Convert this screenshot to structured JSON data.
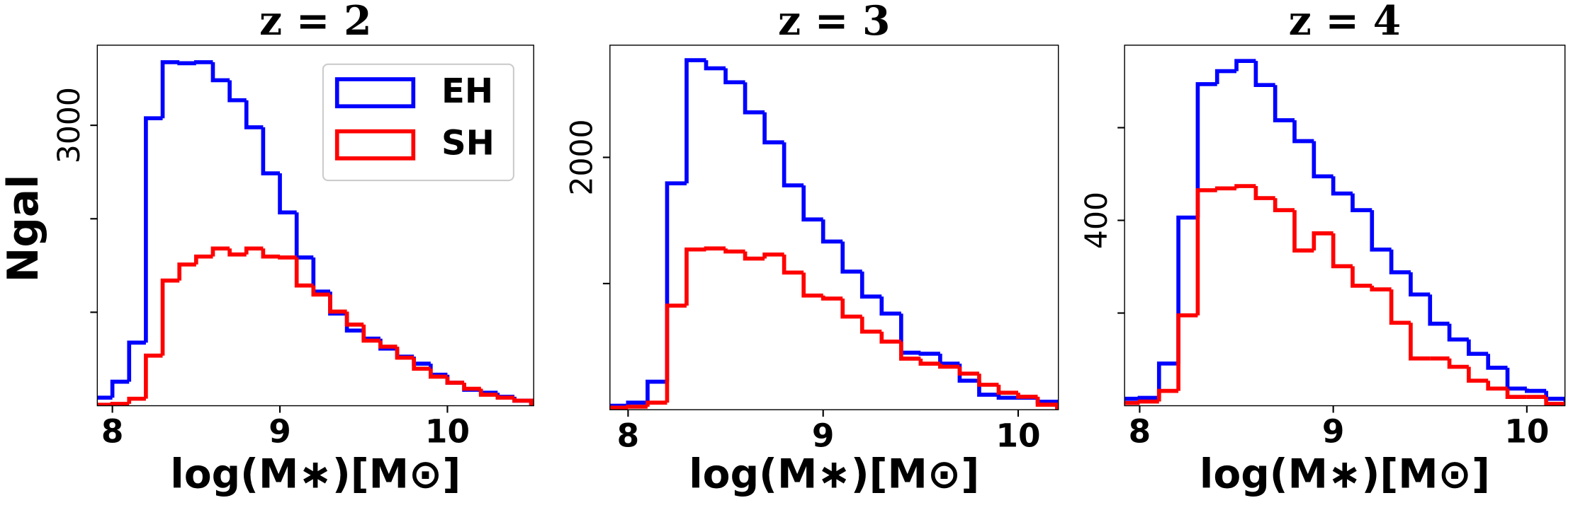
{
  "chart_data": [
    {
      "type": "histogram",
      "title": "z = 2",
      "xlabel": "log(M∗)[M⊙]",
      "ylabel": "Ngal",
      "legend": "upper right",
      "bins": [
        7.9,
        8.0,
        8.1,
        8.2,
        8.3,
        8.4,
        8.5,
        8.6,
        8.7,
        8.8,
        8.9,
        9.0,
        9.1,
        9.2,
        9.3,
        9.4,
        9.5,
        9.6,
        9.7,
        9.8,
        9.9,
        10.0,
        10.1,
        10.2,
        10.3,
        10.4,
        10.5
      ],
      "series": [
        {
          "name": "EH",
          "color": "#0000ff",
          "values": [
            86,
            257,
            675,
            3075,
            3675,
            3664,
            3675,
            3482,
            3268,
            2979,
            2486,
            2068,
            1586,
            1221,
            986,
            804,
            718,
            611,
            525,
            450,
            332,
            246,
            171,
            139,
            96,
            54
          ]
        },
        {
          "name": "SH",
          "color": "#ff0000",
          "values": [
            10,
            20,
            75,
            536,
            1339,
            1511,
            1596,
            1682,
            1618,
            1682,
            1596,
            1586,
            1286,
            1189,
            1007,
            868,
            696,
            632,
            514,
            396,
            311,
            246,
            182,
            118,
            86,
            54
          ]
        }
      ],
      "xlim": [
        7.91,
        10.515
      ],
      "xticks": [
        8,
        9,
        10
      ],
      "ylim": [
        0,
        3857
      ],
      "yticks": [
        3000
      ],
      "yminor": [
        1000,
        2000
      ]
    },
    {
      "type": "histogram",
      "title": "z = 3",
      "xlabel": "log(M∗)[M⊙]",
      "bins": [
        7.9,
        8.0,
        8.1,
        8.2,
        8.3,
        8.4,
        8.5,
        8.6,
        8.7,
        8.8,
        8.9,
        9.0,
        9.1,
        9.2,
        9.3,
        9.4,
        9.5,
        9.6,
        9.7,
        9.8,
        9.9,
        10.0,
        10.1,
        10.2
      ],
      "series": [
        {
          "name": "EH",
          "color": "#0000ff",
          "values": [
            32,
            56,
            222,
            1794,
            2770,
            2706,
            2595,
            2357,
            2119,
            1778,
            1508,
            1333,
            1095,
            897,
            762,
            452,
            444,
            365,
            230,
            119,
            95,
            95,
            63
          ]
        },
        {
          "name": "SH",
          "color": "#ff0000",
          "values": [
            16,
            24,
            56,
            825,
            1270,
            1278,
            1254,
            1198,
            1230,
            1087,
            905,
            881,
            738,
            619,
            540,
            405,
            365,
            341,
            286,
            198,
            135,
            103,
            40
          ]
        }
      ],
      "xlim": [
        7.907,
        10.206
      ],
      "xticks": [
        8,
        9,
        10
      ],
      "ylim": [
        0,
        2889
      ],
      "yticks": [
        2000
      ],
      "yminor": [
        1000
      ]
    },
    {
      "type": "histogram",
      "title": "z = 4",
      "xlabel": "log(M∗)[M⊙]",
      "bins": [
        7.9,
        8.0,
        8.1,
        8.2,
        8.3,
        8.4,
        8.5,
        8.6,
        8.7,
        8.8,
        8.9,
        9.0,
        9.1,
        9.2,
        9.3,
        9.4,
        9.5,
        9.6,
        9.7,
        9.8,
        9.9,
        10.0,
        10.1,
        10.2
      ],
      "series": [
        {
          "name": "EH",
          "color": "#0000ff",
          "values": [
            15,
            17,
            91,
            406,
            694,
            722,
            744,
            692,
            616,
            571,
            495,
            458,
            422,
            337,
            288,
            240,
            177,
            143,
            112,
            82,
            37,
            32,
            15
          ]
        },
        {
          "name": "SH",
          "color": "#ff0000",
          "values": [
            6,
            9,
            32,
            195,
            465,
            469,
            474,
            448,
            422,
            335,
            372,
            301,
            259,
            251,
            179,
            102,
            102,
            84,
            54,
            37,
            19,
            19,
            4
          ]
        }
      ],
      "xlim": [
        7.922,
        10.197
      ],
      "xticks": [
        8,
        9,
        10
      ],
      "ylim": [
        0,
        778
      ],
      "yticks": [
        400
      ],
      "yminor": [
        200,
        600
      ]
    }
  ]
}
